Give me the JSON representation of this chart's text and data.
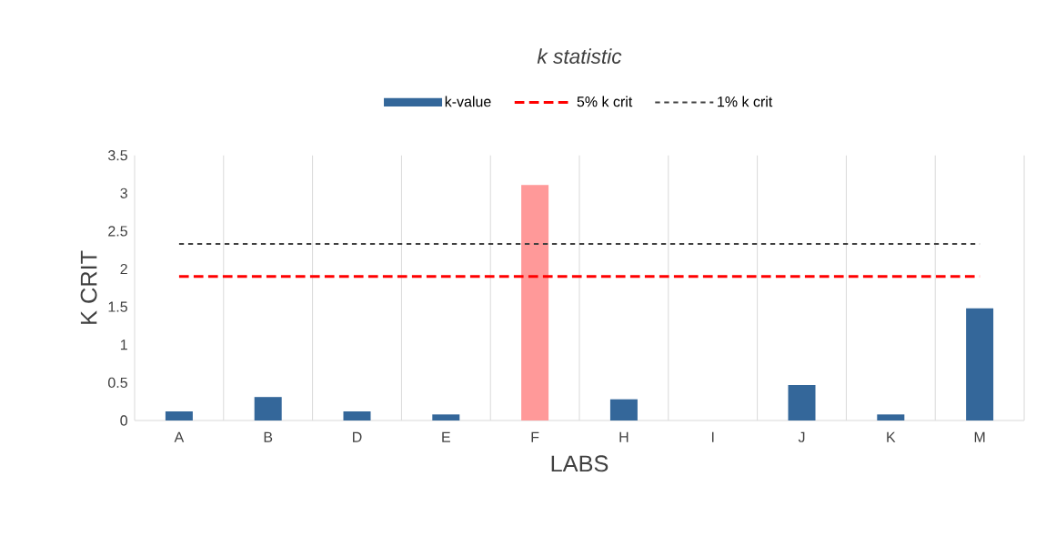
{
  "chart_data": {
    "type": "bar",
    "title": "k statistic",
    "xlabel": "LABS",
    "ylabel": "K CRIT",
    "categories": [
      "A",
      "B",
      "D",
      "E",
      "F",
      "H",
      "I",
      "J",
      "K",
      "M"
    ],
    "series": [
      {
        "name": "k-value",
        "color": "#34679a",
        "colors": [
          "#34679a",
          "#34679a",
          "#34679a",
          "#34679a",
          "#ff9999",
          "#34679a",
          "#34679a",
          "#34679a",
          "#34679a",
          "#34679a"
        ],
        "values": [
          0.12,
          0.31,
          0.12,
          0.08,
          3.11,
          0.28,
          0,
          0.47,
          0.08,
          1.48
        ]
      },
      {
        "name": "5% k crit",
        "type": "line",
        "color": "#ff0000",
        "line_style": "dashed",
        "values": [
          1.9,
          1.9,
          1.9,
          1.9,
          1.9,
          1.9,
          1.9,
          1.9,
          1.9,
          1.9
        ]
      },
      {
        "name": "1% k crit",
        "type": "line",
        "color": "#404040",
        "line_style": "dotted",
        "values": [
          2.33,
          2.33,
          2.33,
          2.33,
          2.33,
          2.33,
          2.33,
          2.33,
          2.33,
          2.33
        ]
      }
    ],
    "ylim": [
      0,
      3.5
    ],
    "yticks": [
      0,
      0.5,
      1,
      1.5,
      2,
      2.5,
      3,
      3.5
    ],
    "grid": "x",
    "legend": "top"
  }
}
